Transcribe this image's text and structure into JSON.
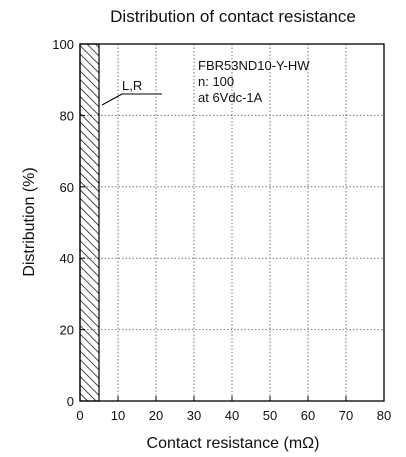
{
  "chart_data": {
    "type": "bar",
    "title": "Distribution of contact resistance",
    "xlabel": "Contact resistance (mΩ)",
    "ylabel": "Distribution (%)",
    "xlim": [
      0,
      80
    ],
    "ylim": [
      0,
      100
    ],
    "x_ticks": [
      0,
      10,
      20,
      30,
      40,
      50,
      60,
      70,
      80
    ],
    "y_ticks": [
      0,
      20,
      40,
      60,
      80,
      100
    ],
    "grid": true,
    "grid_style": "dotted",
    "bars": [
      {
        "x_start": 0,
        "x_end": 5,
        "value": 100,
        "fill": "hatched"
      }
    ],
    "annotations": {
      "series_label": "L,R",
      "part_number": "FBR53ND10-Y-HW",
      "sample_count": "n: 100",
      "condition": "at 6Vdc-1A"
    }
  },
  "colors": {
    "axis": "#000000",
    "grid": "#777777",
    "hatch": "#000000"
  }
}
